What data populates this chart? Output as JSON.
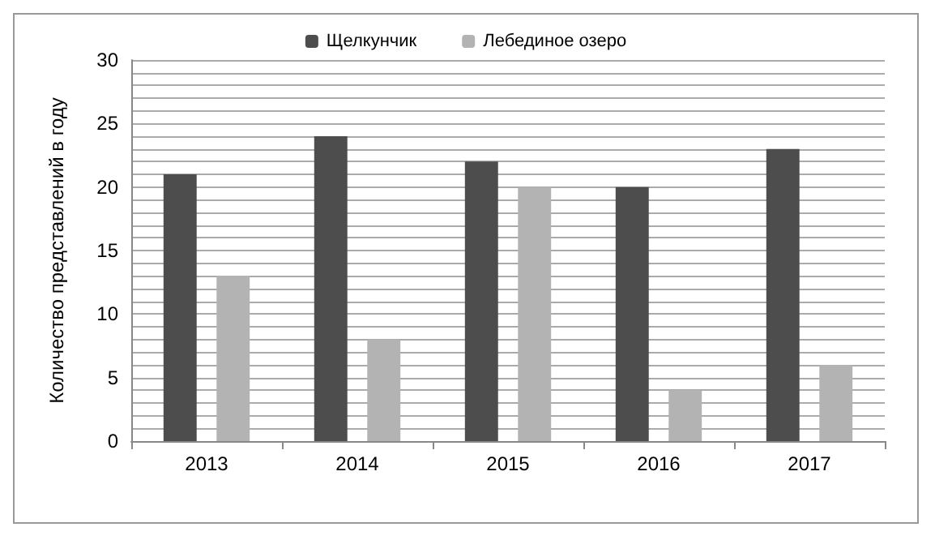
{
  "chart_data": {
    "type": "bar",
    "categories": [
      "2013",
      "2014",
      "2015",
      "2016",
      "2017"
    ],
    "series": [
      {
        "name": "Щелкунчик",
        "color": "#4d4d4d",
        "values": [
          21,
          24,
          22,
          20,
          23
        ]
      },
      {
        "name": "Лебединое озеро",
        "color": "#b3b3b3",
        "values": [
          13,
          8,
          20,
          4,
          6
        ]
      }
    ],
    "ylabel": "Количество представлений в году",
    "ylim": [
      0,
      30
    ],
    "yticks": [
      0,
      {
        "value": 1,
        "label": null
      },
      {
        "value": 2,
        "label": null
      },
      {
        "value": 3,
        "label": null
      },
      {
        "value": 4,
        "label": null
      },
      5,
      {
        "value": 6,
        "label": null
      },
      {
        "value": 7,
        "label": null
      },
      {
        "value": 8,
        "label": null
      },
      {
        "value": 9,
        "label": null
      },
      10,
      {
        "value": 11,
        "label": null
      },
      {
        "value": 12,
        "label": null
      },
      {
        "value": 13,
        "label": null
      },
      {
        "value": 14,
        "label": null
      },
      15,
      {
        "value": 16,
        "label": null
      },
      {
        "value": 17,
        "label": null
      },
      {
        "value": 18,
        "label": null
      },
      {
        "value": 19,
        "label": null
      },
      20,
      {
        "value": 21,
        "label": null
      },
      {
        "value": 22,
        "label": null
      },
      {
        "value": 23,
        "label": null
      },
      {
        "value": 24,
        "label": null
      },
      25,
      {
        "value": 26,
        "label": null
      },
      {
        "value": 27,
        "label": null
      },
      {
        "value": 28,
        "label": null
      },
      {
        "value": 29,
        "label": null
      },
      30
    ],
    "grid": "y",
    "legend": "top"
  }
}
